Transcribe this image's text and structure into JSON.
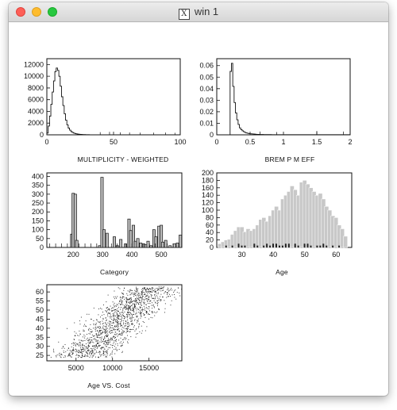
{
  "window": {
    "title": "win 1",
    "x_glyph": "X"
  },
  "chart_data": [
    {
      "type": "histogram",
      "xlabel": "MULTIPLICITY - WEIGHTED",
      "xlim": [
        0,
        100
      ],
      "ylim": [
        0,
        13000
      ],
      "xticks": [
        "0",
        "50",
        "100"
      ],
      "yticks": [
        "0",
        "2000",
        "4000",
        "6000",
        "8000",
        "10000",
        "12000"
      ],
      "bin_width": 1,
      "values": [
        300,
        1500,
        3200,
        5200,
        7300,
        9200,
        10800,
        11400,
        11000,
        10000,
        8300,
        6500,
        5000,
        3600,
        2500,
        1700,
        1150,
        800,
        560,
        400,
        290,
        210,
        160,
        120,
        90,
        70,
        55,
        45,
        35,
        28,
        22,
        18,
        15,
        12,
        10,
        9,
        8,
        7,
        6,
        5,
        5,
        4,
        4,
        3,
        3,
        3,
        2,
        2,
        2,
        2,
        2,
        2,
        1,
        1,
        1,
        1,
        1,
        1,
        1,
        1,
        1,
        1,
        1,
        1,
        1,
        1,
        1,
        1,
        1,
        1,
        1,
        1,
        1,
        1,
        1,
        1,
        1,
        1,
        1,
        1,
        1,
        1,
        1,
        1,
        1,
        1,
        1,
        1,
        1,
        1,
        1,
        1,
        1,
        1,
        1,
        1,
        1,
        1,
        1,
        1
      ],
      "spikes": [
        [
          40,
          180
        ],
        [
          47,
          230
        ],
        [
          55,
          160
        ],
        [
          62,
          130
        ],
        [
          70,
          110
        ],
        [
          80,
          100
        ],
        [
          89,
          120
        ],
        [
          96,
          80
        ]
      ]
    },
    {
      "type": "histogram",
      "xlabel": "BREM P M EFF",
      "xlim": [
        0,
        2
      ],
      "ylim": [
        0,
        0.066
      ],
      "xticks": [
        "0",
        "0.5",
        "1",
        "1.5",
        "2"
      ],
      "yticks": [
        "0",
        "0.01",
        "0.02",
        "0.03",
        "0.04",
        "0.05",
        "0.06"
      ],
      "bin_width": 0.02,
      "values": [
        0,
        0,
        0,
        0,
        0,
        0,
        0,
        0,
        0,
        0,
        0.055,
        0.062,
        0.042,
        0.028,
        0.019,
        0.013,
        0.009,
        0.006,
        0.0045,
        0.0035,
        0.0027,
        0.002,
        0.0016,
        0.0013,
        0.001,
        0.0009,
        0.0008,
        0.0007,
        0.0006,
        0.0005,
        0.0004,
        0.0004,
        0.0003,
        0.0003,
        0.0003,
        0.0002,
        0.0002,
        0.0002,
        0.0002,
        0.0002,
        0.0002,
        0.0001,
        0.0001,
        0.0001,
        0.0001,
        0.0001,
        0.0001,
        0.0001,
        0.0001,
        0.0001,
        0.0001,
        0.0001,
        0.0001,
        0.0001,
        0.0001,
        0.0001,
        0.0001,
        0.0001,
        0.0001,
        0.0001,
        0.0001,
        0.0001,
        0.0001,
        0.0001,
        0.0001,
        0.0001,
        0.0001,
        0.0001,
        0.0001,
        0.0001,
        0.0001,
        0.0001,
        0.0001,
        0.0001,
        0.0001,
        0.0001,
        0.0001,
        0.0001,
        0.0001,
        0.0001,
        0.0001,
        0.0001,
        0.0001,
        0.0001,
        0.0001,
        0.0001,
        0.0001,
        0.0001,
        0.0001,
        0.0001,
        0.0001,
        0.0001,
        0.0001,
        0.0001,
        0.0001,
        0.0001,
        0.0001,
        0.0001,
        0.0001,
        0.0001
      ],
      "spikes": [
        [
          0.65,
          0.0015
        ],
        [
          0.9,
          0.001
        ],
        [
          1.5,
          0.002
        ],
        [
          1.9,
          0.0015
        ]
      ]
    },
    {
      "type": "bar",
      "xlabel": "Category",
      "xlim": [
        110,
        570
      ],
      "ylim": [
        0,
        420
      ],
      "xticks": [
        "200",
        "300",
        "400",
        "500"
      ],
      "yticks": [
        "0",
        "50",
        "100",
        "150",
        "200",
        "250",
        "300",
        "350",
        "400"
      ],
      "bars": [
        [
          195,
          75
        ],
        [
          200,
          305
        ],
        [
          207,
          300
        ],
        [
          212,
          40
        ],
        [
          290,
          10
        ],
        [
          298,
          395
        ],
        [
          305,
          100
        ],
        [
          315,
          80
        ],
        [
          323,
          0
        ],
        [
          340,
          60
        ],
        [
          350,
          10
        ],
        [
          362,
          45
        ],
        [
          378,
          20
        ],
        [
          390,
          160
        ],
        [
          396,
          95
        ],
        [
          405,
          125
        ],
        [
          412,
          35
        ],
        [
          420,
          50
        ],
        [
          430,
          25
        ],
        [
          440,
          20
        ],
        [
          448,
          15
        ],
        [
          455,
          35
        ],
        [
          465,
          10
        ],
        [
          475,
          100
        ],
        [
          482,
          60
        ],
        [
          492,
          120
        ],
        [
          500,
          125
        ],
        [
          505,
          30
        ],
        [
          515,
          40
        ],
        [
          530,
          10
        ],
        [
          545,
          20
        ],
        [
          555,
          25
        ],
        [
          565,
          70
        ]
      ],
      "ticks_baseline": [
        120,
        140,
        160,
        180,
        220,
        240,
        260,
        280,
        330,
        350,
        380,
        400,
        440,
        460,
        480,
        520,
        540,
        560
      ]
    },
    {
      "type": "bar",
      "xlabel": "Age",
      "xlim": [
        22,
        65
      ],
      "ylim": [
        0,
        200
      ],
      "xticks": [
        "30",
        "40",
        "50",
        "60"
      ],
      "yticks": [
        "0",
        "20",
        "40",
        "60",
        "80",
        "100",
        "120",
        "140",
        "160",
        "180",
        "200"
      ],
      "categories": [
        23,
        24,
        25,
        26,
        27,
        28,
        29,
        30,
        31,
        32,
        33,
        34,
        35,
        36,
        37,
        38,
        39,
        40,
        41,
        42,
        43,
        44,
        45,
        46,
        47,
        48,
        49,
        50,
        51,
        52,
        53,
        54,
        55,
        56,
        57,
        58,
        59,
        60,
        61,
        62,
        63
      ],
      "values": [
        10,
        15,
        20,
        22,
        35,
        45,
        55,
        55,
        42,
        50,
        45,
        50,
        60,
        75,
        80,
        70,
        85,
        100,
        110,
        100,
        130,
        140,
        150,
        165,
        155,
        140,
        175,
        180,
        170,
        160,
        150,
        140,
        145,
        130,
        110,
        100,
        85,
        80,
        60,
        50,
        30
      ],
      "dark_values": [
        0,
        0,
        5,
        0,
        5,
        0,
        10,
        5,
        5,
        0,
        0,
        10,
        5,
        0,
        5,
        10,
        5,
        10,
        10,
        5,
        5,
        10,
        10,
        0,
        10,
        5,
        0,
        10,
        10,
        5,
        0,
        5,
        5,
        10,
        5,
        0,
        5,
        0,
        5,
        0,
        0
      ]
    },
    {
      "type": "scatter",
      "xlabel": "Age VS. Cost",
      "xlim": [
        1000,
        19500
      ],
      "ylim": [
        22,
        64
      ],
      "xticks": [
        "5000",
        "10000",
        "15000"
      ],
      "yticks": [
        "25",
        "30",
        "35",
        "40",
        "45",
        "50",
        "55",
        "60"
      ],
      "n_points": 1400
    }
  ]
}
